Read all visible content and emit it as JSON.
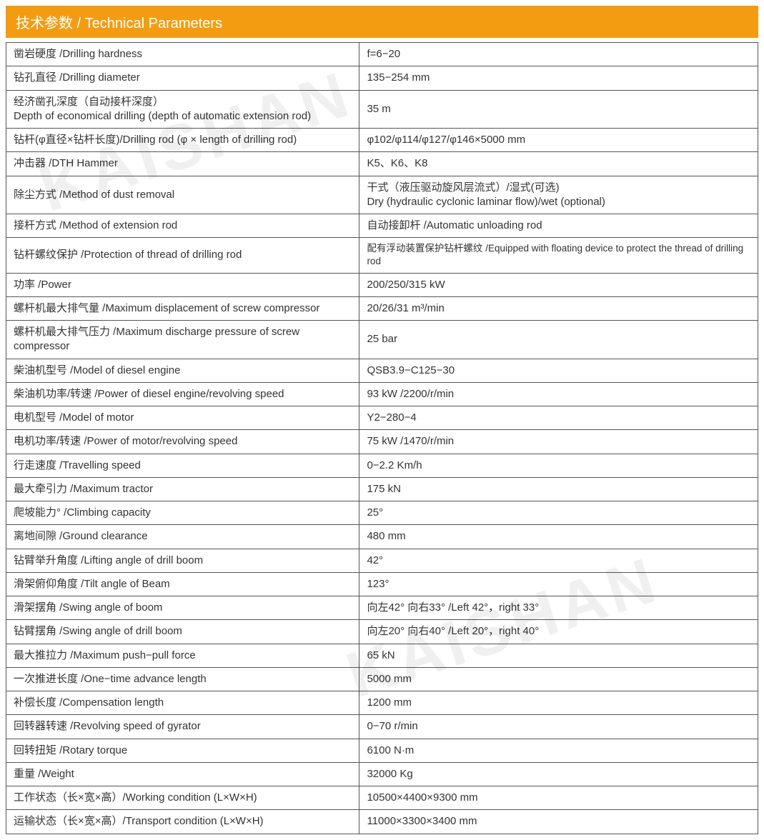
{
  "header": {
    "title_cn": "技术参数",
    "title_en": "Technical Parameters",
    "bg_color": "#f39c12",
    "fg_color": "#ffffff"
  },
  "watermark": "KAISHAN",
  "table": {
    "border_color": "#555555",
    "rows": [
      {
        "label": "凿岩硬度 /Drilling hardness",
        "value": "f=6−20"
      },
      {
        "label": "钻孔直径 /Drilling diameter",
        "value": "135−254 mm"
      },
      {
        "label": "经济凿孔深度（自动接杆深度）\nDepth of economical drilling (depth of automatic extension rod)",
        "value": " 35 m"
      },
      {
        "label": "钻杆(φ直径×钻杆长度)/Drilling rod (φ × length of drilling rod)",
        "value": "φ102/φ114/φ127/φ146×5000  mm"
      },
      {
        "label": "冲击器 /DTH Hammer",
        "value": "K5、K6、K8"
      },
      {
        "label": " 除尘方式 /Method of dust removal",
        "value": "干式（液压驱动旋风层流式）/湿式(可选)\n Dry (hydraulic cyclonic laminar flow)/wet (optional)"
      },
      {
        "label": "接杆方式 /Method of extension rod",
        "value": "自动接卸杆 /Automatic unloading rod"
      },
      {
        "label": "钻杆螺纹保护 /Protection of thread of drilling rod",
        "value": "配有浮动装置保护钻杆螺纹 /Equipped with floating device to protect the thread of drilling rod",
        "small": true
      },
      {
        "label": "功率 /Power",
        "value": "200/250/315 kW"
      },
      {
        "label": "螺杆机最大排气量 /Maximum displacement of screw compressor",
        "value": "20/26/31  m³/min"
      },
      {
        "label": "螺杆机最大排气压力 /Maximum discharge pressure of screw compressor",
        "value": "25 bar"
      },
      {
        "label": "柴油机型号 /Model of diesel engine",
        "value": "QSB3.9−C125−30"
      },
      {
        "label": "柴油机功率/转速 /Power of diesel engine/revolving speed",
        "value": "93 kW  /2200/r/min"
      },
      {
        "label": "电机型号 /Model of motor",
        "value": "Y2−280−4"
      },
      {
        "label": "电机功率/转速 /Power of motor/revolving speed",
        "value": "75 kW  /1470/r/min"
      },
      {
        "label": "行走速度 /Travelling speed",
        "value": "0−2.2 Km/h"
      },
      {
        "label": "最大牵引力 /Maximum tractor",
        "value": "175 kN"
      },
      {
        "label": "爬坡能力° /Climbing capacity",
        "value": "25°"
      },
      {
        "label": "离地间隙 /Ground clearance",
        "value": "480 mm"
      },
      {
        "label": "钻臂举升角度 /Lifting angle of drill boom",
        "value": "42°"
      },
      {
        "label": "滑架俯仰角度 /Tilt angle of Beam",
        "value": "123°"
      },
      {
        "label": "滑架摆角 /Swing angle of boom",
        "value": "向左42° 向右33° /Left 42°，right 33°"
      },
      {
        "label": "钻臂摆角 /Swing angle of drill boom",
        "value": "向左20° 向右40° /Left 20°，right 40°"
      },
      {
        "label": "最大推拉力 /Maximum push−pull force",
        "value": "65 kN"
      },
      {
        "label": "一次推进长度 /One−time advance length",
        "value": "5000 mm"
      },
      {
        "label": "补偿长度 /Compensation length",
        "value": "1200 mm"
      },
      {
        "label": "回转器转速 /Revolving speed of gyrator",
        "value": "0−70 r/min"
      },
      {
        "label": "回转扭矩 /Rotary torque",
        "value": "6100 N·m"
      },
      {
        "label": "重量 /Weight",
        "value": "32000 Kg"
      },
      {
        "label": "工作状态（长×宽×高）/Working condition (L×W×H)",
        "value": "10500×4400×9300 mm"
      },
      {
        "label": "运输状态（长×宽×高）/Transport condition (L×W×H)",
        "value": "11000×3300×3400 mm"
      }
    ]
  }
}
